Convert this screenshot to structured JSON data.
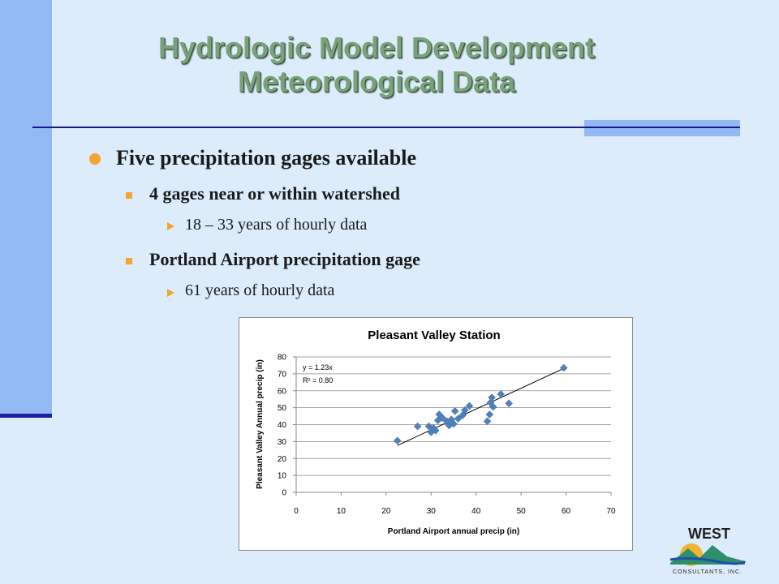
{
  "slide": {
    "title_line1": "Hydrologic Model Development",
    "title_line2": "Meteorological Data",
    "bullets": {
      "level1": "Five precipitation gages available",
      "sub1": "4 gages near or within watershed",
      "sub1_detail": "18 – 33 years of hourly data",
      "sub2": "Portland Airport precipitation gage",
      "sub2_detail": "61 years of hourly data"
    },
    "colors": {
      "background": "#dcecfa",
      "accent_bar": "#93b9f5",
      "title": "#79a27b",
      "bullet": "#f2a531",
      "rule": "#1a1a8c"
    }
  },
  "logo": {
    "name": "WEST",
    "tagline": "CONSULTANTS, INC."
  },
  "chart_data": {
    "type": "scatter",
    "title": "Pleasant Valley Station",
    "xlabel": "Portland Airport  annual precip (in)",
    "ylabel": "Pleasant Valley Annual precip (in)",
    "xlim": [
      0,
      70
    ],
    "ylim": [
      0,
      80
    ],
    "xticks": [
      0,
      10,
      20,
      30,
      40,
      50,
      60,
      70
    ],
    "yticks": [
      0,
      10,
      20,
      30,
      40,
      50,
      60,
      70,
      80
    ],
    "grid": "horizontal",
    "legend": "none",
    "marker_color": "#4f81bd",
    "trendline": {
      "type": "linear",
      "slope": 1.23,
      "x_range": [
        22.5,
        59.5
      ],
      "equation_label": "y = 1.23x",
      "r2_label": "R² = 0.80"
    },
    "points": [
      {
        "x": 22.5,
        "y": 30.5
      },
      {
        "x": 27,
        "y": 39
      },
      {
        "x": 29.5,
        "y": 39
      },
      {
        "x": 30,
        "y": 35.5
      },
      {
        "x": 30.5,
        "y": 38
      },
      {
        "x": 31,
        "y": 36.5
      },
      {
        "x": 31.5,
        "y": 42.5
      },
      {
        "x": 31.8,
        "y": 46
      },
      {
        "x": 32.5,
        "y": 44
      },
      {
        "x": 33.5,
        "y": 42
      },
      {
        "x": 34,
        "y": 39.5
      },
      {
        "x": 34.5,
        "y": 43
      },
      {
        "x": 35,
        "y": 40.5
      },
      {
        "x": 35.3,
        "y": 48
      },
      {
        "x": 36,
        "y": 43.5
      },
      {
        "x": 37,
        "y": 45.5
      },
      {
        "x": 37.5,
        "y": 48.5
      },
      {
        "x": 38.5,
        "y": 51
      },
      {
        "x": 42.5,
        "y": 42
      },
      {
        "x": 43,
        "y": 46
      },
      {
        "x": 43.2,
        "y": 53
      },
      {
        "x": 43.5,
        "y": 56
      },
      {
        "x": 43.8,
        "y": 50.5
      },
      {
        "x": 45.5,
        "y": 58
      },
      {
        "x": 47.3,
        "y": 52.5
      },
      {
        "x": 59.5,
        "y": 73.5
      }
    ]
  }
}
